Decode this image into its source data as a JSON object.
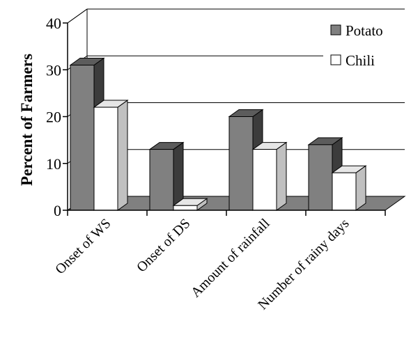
{
  "chart_data": {
    "type": "bar",
    "title": "",
    "xlabel": "",
    "ylabel": "Percent of Farmers",
    "ylim": [
      0,
      40
    ],
    "yticks": [
      "0",
      "10",
      "20",
      "30",
      "40"
    ],
    "categories": [
      "Onset of WS",
      "Onset of  DS",
      "Amount of rainfall",
      "Number of rainy days"
    ],
    "series": [
      {
        "name": "Potato",
        "values": [
          31,
          13,
          20,
          14
        ],
        "color": "#808080"
      },
      {
        "name": "Chili",
        "values": [
          22,
          1,
          13,
          8
        ],
        "color": "#ffffff"
      }
    ],
    "grid": true,
    "legend": "top-right",
    "three_d": true
  }
}
